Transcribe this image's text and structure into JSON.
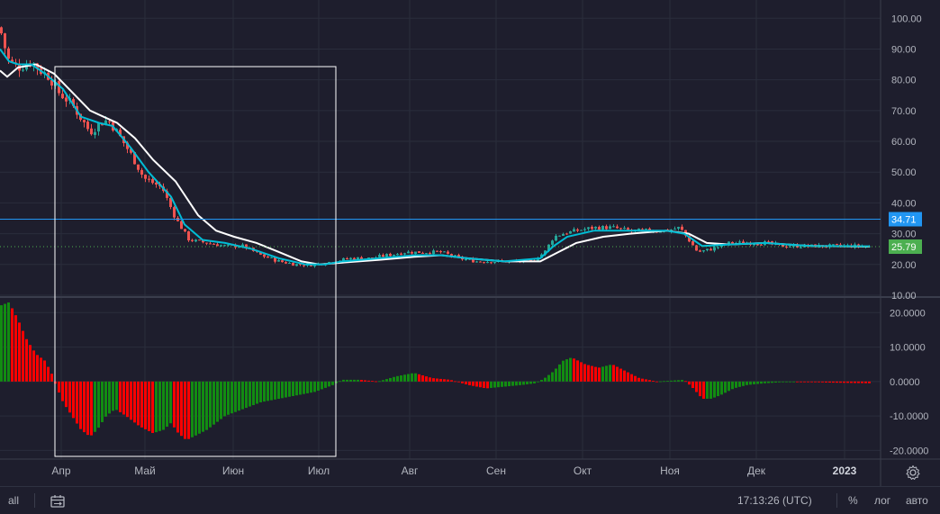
{
  "chart_data": [
    {
      "type": "candlestick",
      "title": "",
      "x_months": [
        "Апр",
        "Май",
        "Июн",
        "Июл",
        "Авг",
        "Сен",
        "Окт",
        "Ноя",
        "Дек"
      ],
      "x_year": "2023",
      "y_ticks": [
        "100.00",
        "90.00",
        "80.00",
        "70.00",
        "60.00",
        "50.00",
        "40.00",
        "30.00",
        "20.00",
        "10.00"
      ],
      "ylim": [
        10,
        103
      ],
      "price_path": [
        [
          0,
          97
        ],
        [
          4,
          92
        ],
        [
          10,
          86
        ],
        [
          20,
          84
        ],
        [
          35,
          86
        ],
        [
          45,
          83
        ],
        [
          55,
          81
        ],
        [
          65,
          76
        ],
        [
          80,
          72
        ],
        [
          100,
          63
        ],
        [
          112,
          66
        ],
        [
          120,
          67
        ],
        [
          130,
          63
        ],
        [
          145,
          56
        ],
        [
          160,
          48
        ],
        [
          180,
          45
        ],
        [
          195,
          35
        ],
        [
          210,
          28
        ],
        [
          230,
          27
        ],
        [
          250,
          26
        ],
        [
          270,
          26
        ],
        [
          290,
          23
        ],
        [
          310,
          21
        ],
        [
          330,
          20
        ],
        [
          350,
          20
        ],
        [
          370,
          21
        ],
        [
          390,
          22
        ],
        [
          410,
          22
        ],
        [
          430,
          23
        ],
        [
          450,
          24
        ],
        [
          470,
          24
        ],
        [
          490,
          24
        ],
        [
          510,
          22
        ],
        [
          530,
          21
        ],
        [
          550,
          21
        ],
        [
          570,
          21
        ],
        [
          590,
          21
        ],
        [
          605,
          24
        ],
        [
          615,
          29
        ],
        [
          625,
          30
        ],
        [
          640,
          31
        ],
        [
          660,
          32
        ],
        [
          680,
          32
        ],
        [
          700,
          31
        ],
        [
          720,
          31
        ],
        [
          740,
          31
        ],
        [
          755,
          32
        ],
        [
          765,
          28
        ],
        [
          775,
          24
        ],
        [
          790,
          25
        ],
        [
          810,
          27
        ],
        [
          830,
          27
        ],
        [
          850,
          27
        ],
        [
          870,
          26
        ],
        [
          890,
          26
        ],
        [
          910,
          26
        ],
        [
          930,
          26
        ],
        [
          950,
          26
        ],
        [
          966,
          25.8
        ]
      ],
      "ema_fast": [
        [
          0,
          90
        ],
        [
          10,
          86
        ],
        [
          20,
          85
        ],
        [
          35,
          85
        ],
        [
          50,
          82
        ],
        [
          70,
          77
        ],
        [
          90,
          68
        ],
        [
          110,
          66
        ],
        [
          125,
          65
        ],
        [
          145,
          58
        ],
        [
          165,
          50
        ],
        [
          190,
          42
        ],
        [
          205,
          33
        ],
        [
          225,
          28
        ],
        [
          250,
          27
        ],
        [
          280,
          25
        ],
        [
          310,
          22
        ],
        [
          340,
          20
        ],
        [
          360,
          20
        ],
        [
          380,
          21
        ],
        [
          420,
          22
        ],
        [
          460,
          23
        ],
        [
          490,
          23
        ],
        [
          520,
          22
        ],
        [
          560,
          21
        ],
        [
          600,
          22
        ],
        [
          615,
          26
        ],
        [
          630,
          29
        ],
        [
          660,
          31
        ],
        [
          690,
          31
        ],
        [
          740,
          31
        ],
        [
          760,
          30
        ],
        [
          780,
          26
        ],
        [
          810,
          26.5
        ],
        [
          850,
          27
        ],
        [
          900,
          26
        ],
        [
          966,
          25.9
        ]
      ],
      "ema_slow": [
        [
          0,
          83
        ],
        [
          8,
          81
        ],
        [
          20,
          84
        ],
        [
          40,
          85
        ],
        [
          60,
          82
        ],
        [
          80,
          76
        ],
        [
          100,
          70
        ],
        [
          115,
          68
        ],
        [
          130,
          66
        ],
        [
          150,
          61
        ],
        [
          170,
          54
        ],
        [
          195,
          47
        ],
        [
          220,
          36
        ],
        [
          240,
          31
        ],
        [
          260,
          29
        ],
        [
          285,
          27
        ],
        [
          310,
          24
        ],
        [
          335,
          21
        ],
        [
          355,
          20
        ],
        [
          375,
          20.5
        ],
        [
          420,
          21.5
        ],
        [
          460,
          22.5
        ],
        [
          490,
          23
        ],
        [
          520,
          22
        ],
        [
          560,
          21
        ],
        [
          600,
          21
        ],
        [
          620,
          24
        ],
        [
          640,
          27
        ],
        [
          670,
          29
        ],
        [
          700,
          30
        ],
        [
          740,
          31
        ],
        [
          765,
          30
        ],
        [
          785,
          27
        ],
        [
          810,
          26.5
        ],
        [
          850,
          27
        ],
        [
          900,
          26
        ],
        [
          966,
          25.8
        ]
      ],
      "horizontal_lines": [
        {
          "value": 34.71,
          "label": "34.71",
          "color": "#2196f3",
          "style": "solid"
        },
        {
          "value": 25.79,
          "label": "25.79",
          "color": "#4caf50",
          "style": "dotted"
        }
      ],
      "up_color": "#26a69a",
      "down_color": "#ef5350",
      "ema_fast_color": "#00bcd4",
      "ema_slow_color": "#ffffff"
    },
    {
      "type": "bar",
      "series_kind": "histogram",
      "y_ticks": [
        "20.0000",
        "10.0000",
        "0.0000",
        "-10.0000",
        "-20.0000"
      ],
      "ylim": [
        -22,
        24
      ],
      "values_path": [
        [
          0,
          22
        ],
        [
          10,
          23
        ],
        [
          20,
          18
        ],
        [
          30,
          12
        ],
        [
          40,
          8
        ],
        [
          50,
          6
        ],
        [
          58,
          2
        ],
        [
          62,
          -1
        ],
        [
          70,
          -6
        ],
        [
          80,
          -10
        ],
        [
          90,
          -14
        ],
        [
          100,
          -16
        ],
        [
          108,
          -14
        ],
        [
          118,
          -10
        ],
        [
          128,
          -8
        ],
        [
          140,
          -10
        ],
        [
          155,
          -13
        ],
        [
          170,
          -15
        ],
        [
          182,
          -14
        ],
        [
          190,
          -12
        ],
        [
          198,
          -15
        ],
        [
          207,
          -17
        ],
        [
          215,
          -16
        ],
        [
          230,
          -14
        ],
        [
          250,
          -10
        ],
        [
          270,
          -8
        ],
        [
          290,
          -6
        ],
        [
          310,
          -5
        ],
        [
          330,
          -4
        ],
        [
          350,
          -3
        ],
        [
          370,
          -1
        ],
        [
          380,
          0.5
        ],
        [
          400,
          0.5
        ],
        [
          420,
          0
        ],
        [
          440,
          1.5
        ],
        [
          460,
          2.5
        ],
        [
          480,
          1
        ],
        [
          500,
          0.5
        ],
        [
          520,
          -1
        ],
        [
          540,
          -2
        ],
        [
          560,
          -1.5
        ],
        [
          580,
          -1
        ],
        [
          595,
          -0.5
        ],
        [
          605,
          1
        ],
        [
          615,
          3
        ],
        [
          625,
          6
        ],
        [
          635,
          7
        ],
        [
          650,
          5
        ],
        [
          665,
          4
        ],
        [
          680,
          5
        ],
        [
          695,
          3
        ],
        [
          710,
          1
        ],
        [
          730,
          0
        ],
        [
          760,
          0.5
        ],
        [
          770,
          -2
        ],
        [
          780,
          -5
        ],
        [
          790,
          -5
        ],
        [
          800,
          -4
        ],
        [
          815,
          -2
        ],
        [
          830,
          -1
        ],
        [
          850,
          -0.5
        ],
        [
          880,
          0
        ],
        [
          920,
          -0.3
        ],
        [
          966,
          -0.5
        ]
      ],
      "color_rules": {
        "rising": "#128c12",
        "falling": "#ff0000"
      }
    }
  ],
  "bottom_bar": {
    "range_all": "all",
    "clock": "17:13:26 (UTC)",
    "percent": "%",
    "log": "лог",
    "auto": "авто"
  }
}
